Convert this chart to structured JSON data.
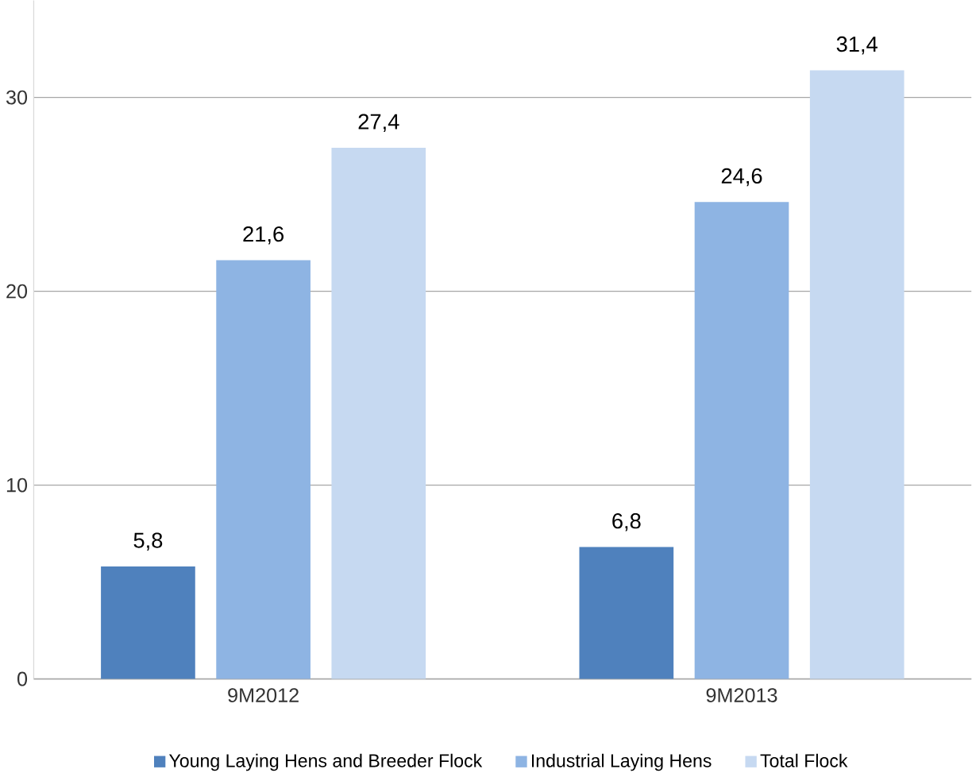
{
  "chart_data": {
    "type": "bar",
    "categories": [
      "9M2012",
      "9M2013"
    ],
    "series": [
      {
        "name": "Young Laying Hens and Breeder Flock",
        "color": "#4f81bd",
        "values": [
          5.8,
          6.8
        ],
        "value_labels": [
          "5,8",
          "6,8"
        ]
      },
      {
        "name": "Industrial Laying Hens",
        "color": "#8eb4e3",
        "values": [
          21.6,
          24.6
        ],
        "value_labels": [
          "21,6",
          "24,6"
        ]
      },
      {
        "name": "Total Flock",
        "color": "#c6d9f1",
        "values": [
          27.4,
          31.4
        ],
        "value_labels": [
          "27,4",
          "31,4"
        ]
      }
    ],
    "ylim": [
      0,
      35
    ],
    "yticks": [
      0,
      10,
      20,
      30
    ],
    "grid": "y",
    "legend": "bottom"
  }
}
